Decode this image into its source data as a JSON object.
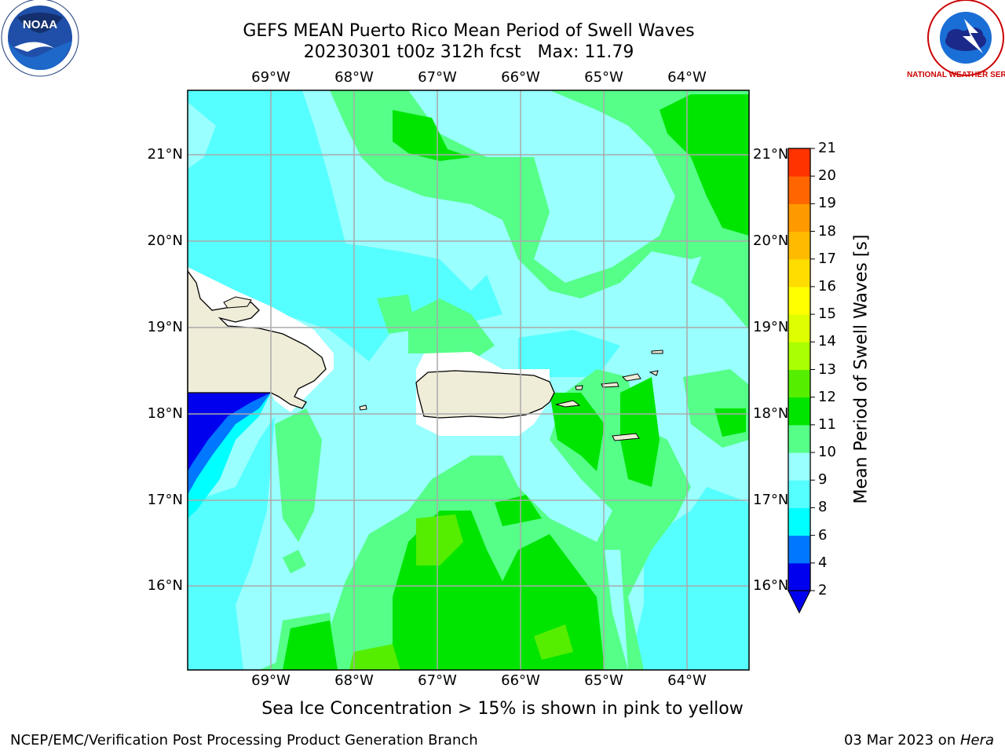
{
  "title": {
    "line1": "GEFS MEAN Puerto Rico Mean Period of Swell Waves",
    "line2": "20230301 t00z 312h fcst   Max: 11.79"
  },
  "map": {
    "lon_labels": [
      "69°W",
      "68°W",
      "67°W",
      "66°W",
      "65°W",
      "64°W"
    ],
    "lat_labels": [
      "21°N",
      "20°N",
      "19°N",
      "18°N",
      "17°N",
      "16°N"
    ],
    "islands": [
      "Hispaniola",
      "Puerto Rico",
      "Virgin Islands"
    ]
  },
  "colorbar": {
    "label": "Mean Period of Swell Waves [s]",
    "ticks": [
      "2",
      "4",
      "6",
      "8",
      "9",
      "10",
      "11",
      "12",
      "13",
      "14",
      "15",
      "16",
      "17",
      "18",
      "19",
      "20",
      "21"
    ],
    "colors": [
      "#0000ee",
      "#0077ff",
      "#00ffff",
      "#55ffff",
      "#99ffff",
      "#55ff88",
      "#00e500",
      "#55ee00",
      "#aaff00",
      "#ddff00",
      "#ffff00",
      "#ffdd00",
      "#ffbb00",
      "#ff9900",
      "#ff6600",
      "#ff3300",
      "#ff0000"
    ]
  },
  "note": "Sea Ice Concentration > 15% is shown in pink to yellow",
  "footer": {
    "left": "NCEP/EMC/Verification Post Processing Product Generation Branch",
    "right_prefix": "03 Mar 2023 on ",
    "right_host": "Hera"
  },
  "logos": {
    "noaa": "NOAA",
    "nws": "NATIONAL WEATHER SERVICE"
  }
}
